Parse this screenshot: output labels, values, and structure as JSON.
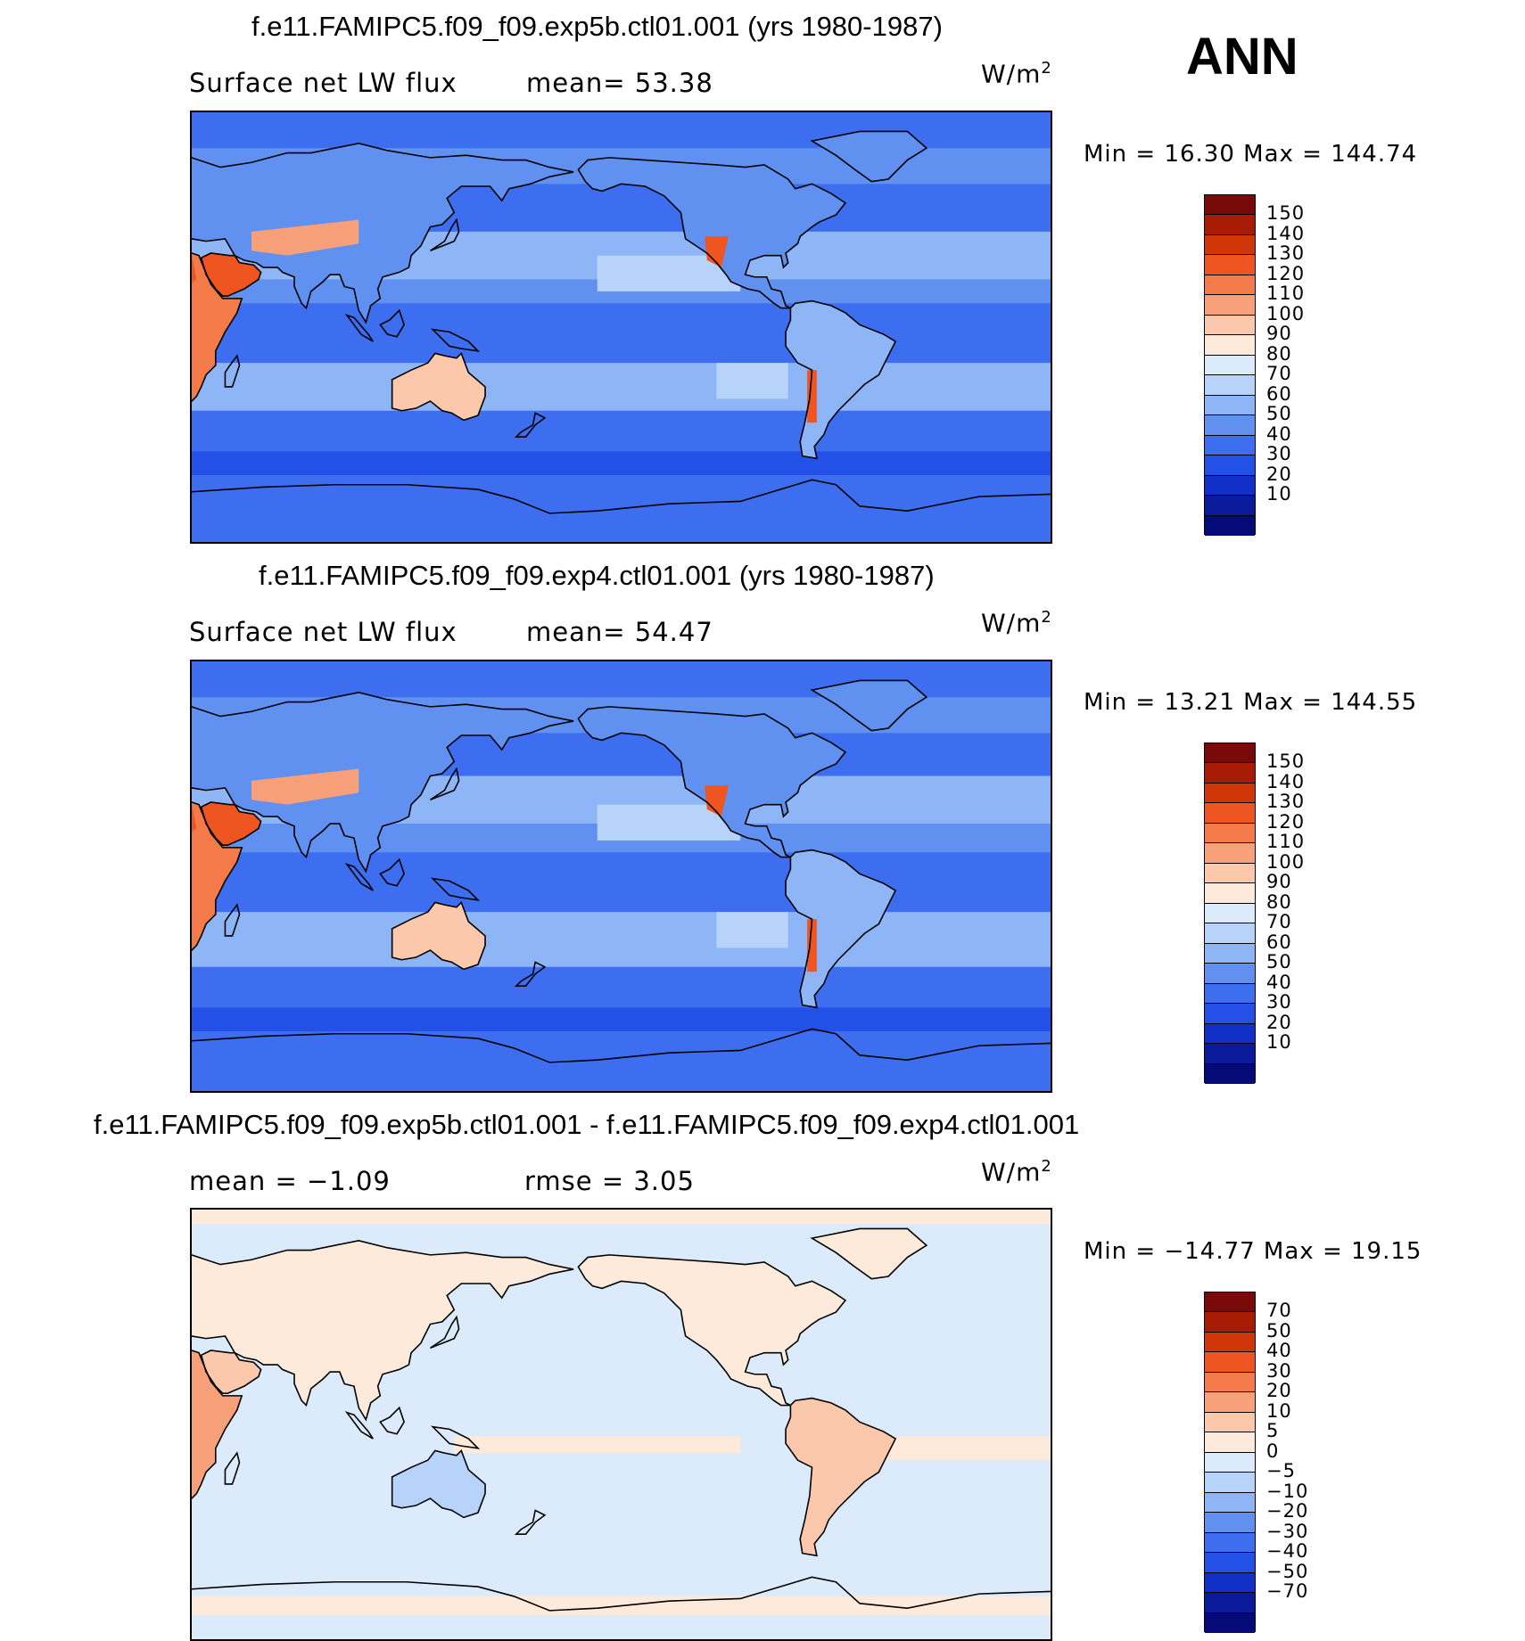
{
  "header": {
    "season": "ANN"
  },
  "panels": [
    {
      "title": "f.e11.FAMIPC5.f09_f09.exp5b.ctl01.001 (yrs 1980-1987)",
      "left_label": "Surface net LW flux",
      "center_label": "mean=   53.38",
      "units": "W/m",
      "units_sup": "2",
      "minmax": "Min =   16.30  Max = 144.74",
      "map_style": "exp5b",
      "colorbar": {
        "levels": [
          "150",
          "140",
          "130",
          "120",
          "110",
          "100",
          "90",
          "80",
          "70",
          "60",
          "50",
          "40",
          "30",
          "20",
          "10"
        ],
        "colors": [
          "#7a0a0a",
          "#a81c06",
          "#d03608",
          "#ee5520",
          "#f47a4a",
          "#f8a07a",
          "#fcc8ac",
          "#fdeadb",
          "#dcebfb",
          "#b7d3fa",
          "#8eb5f6",
          "#6090f0",
          "#3e6ef0",
          "#2350e6",
          "#1130c8",
          "#0a1a9a",
          "#050a78"
        ]
      }
    },
    {
      "title": "f.e11.FAMIPC5.f09_f09.exp4.ctl01.001 (yrs 1980-1987)",
      "left_label": "Surface net LW flux",
      "center_label": "mean=   54.47",
      "units": "W/m",
      "units_sup": "2",
      "minmax": "Min =   13.21  Max = 144.55",
      "map_style": "exp4",
      "colorbar": {
        "levels": [
          "150",
          "140",
          "130",
          "120",
          "110",
          "100",
          "90",
          "80",
          "70",
          "60",
          "50",
          "40",
          "30",
          "20",
          "10"
        ],
        "colors": [
          "#7a0a0a",
          "#a81c06",
          "#d03608",
          "#ee5520",
          "#f47a4a",
          "#f8a07a",
          "#fcc8ac",
          "#fdeadb",
          "#dcebfb",
          "#b7d3fa",
          "#8eb5f6",
          "#6090f0",
          "#3e6ef0",
          "#2350e6",
          "#1130c8",
          "#0a1a9a",
          "#050a78"
        ]
      }
    },
    {
      "title": "f.e11.FAMIPC5.f09_f09.exp5b.ctl01.001 - f.e11.FAMIPC5.f09_f09.exp4.ctl01.001",
      "left_label": "mean =   −1.09",
      "center_label": "rmse =    3.05",
      "units": "W/m",
      "units_sup": "2",
      "minmax": "Min = −14.77  Max =   19.15",
      "map_style": "diff",
      "colorbar": {
        "levels": [
          "70",
          "50",
          "40",
          "30",
          "20",
          "10",
          "5",
          "0",
          "−5",
          "−10",
          "−20",
          "−30",
          "−40",
          "−50",
          "−70"
        ],
        "colors": [
          "#7a0a0a",
          "#a81c06",
          "#d03608",
          "#ee5520",
          "#f47a4a",
          "#f8a07a",
          "#fcc8ac",
          "#fdeadb",
          "#dcebfb",
          "#b7d3fa",
          "#8eb5f6",
          "#6090f0",
          "#3e6ef0",
          "#2350e6",
          "#1130c8",
          "#0a1a9a",
          "#050a78"
        ]
      }
    }
  ]
}
